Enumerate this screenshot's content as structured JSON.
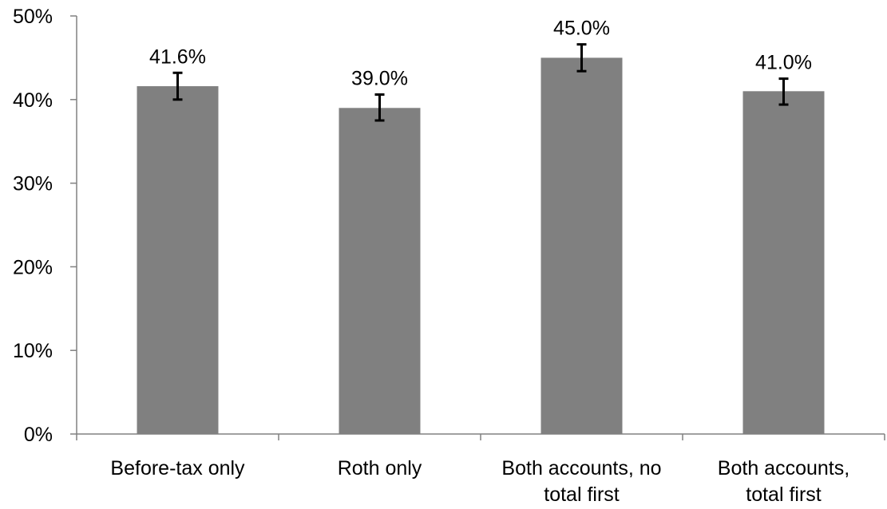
{
  "chart_data": {
    "type": "bar",
    "title": "",
    "xlabel": "",
    "ylabel": "",
    "ylim": [
      0,
      50
    ],
    "y_ticks": [
      0,
      10,
      20,
      30,
      40,
      50
    ],
    "y_tick_labels": [
      "0%",
      "10%",
      "20%",
      "30%",
      "40%",
      "50%"
    ],
    "grid": false,
    "legend": "none",
    "categories": [
      [
        "Before-tax only"
      ],
      [
        "Roth only"
      ],
      [
        "Both accounts, no",
        "total first"
      ],
      [
        "Both accounts,",
        "total first"
      ]
    ],
    "values": [
      41.6,
      39.0,
      45.0,
      41.0
    ],
    "data_labels": [
      "41.6%",
      "39.0%",
      "45.0%",
      "41.0%"
    ],
    "error_bars": [
      {
        "low": 40.0,
        "high": 43.2
      },
      {
        "low": 37.5,
        "high": 40.6
      },
      {
        "low": 43.4,
        "high": 46.6
      },
      {
        "low": 39.4,
        "high": 42.5
      }
    ],
    "bar_color": "#808080",
    "axis_color": "#808080",
    "error_bar_color": "#000000"
  }
}
